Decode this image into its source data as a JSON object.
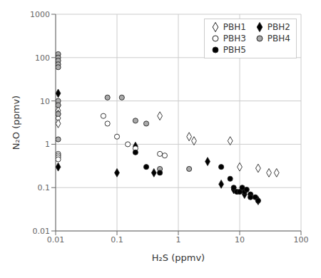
{
  "chart_data": {
    "type": "scatter",
    "xlabel": "H₂S (ppmv)",
    "ylabel": "N₂O (ppmv)",
    "log": true,
    "grid": true,
    "legend": "upper right",
    "xlim": [
      0.01,
      100
    ],
    "ylim": [
      0.01,
      1000
    ],
    "xticks": [
      0.01,
      0.1,
      1,
      10,
      100
    ],
    "yticks": [
      0.01,
      0.1,
      1,
      10,
      100,
      1000
    ],
    "series": [
      {
        "name": "PBH1",
        "marker": "diamond",
        "color": "#ffffff",
        "x": [
          0.011,
          0.011,
          0.011,
          0.011,
          0.011,
          0.5,
          1.5,
          1.8,
          7,
          10,
          20,
          30,
          40
        ],
        "values": [
          8,
          6,
          5,
          4,
          3,
          4.5,
          1.5,
          1.2,
          1.2,
          0.3,
          0.28,
          0.22,
          0.22
        ]
      },
      {
        "name": "PBH2",
        "marker": "diamond",
        "color": "#000000",
        "x": [
          0.011,
          0.011,
          0.1,
          0.2,
          0.4,
          3,
          5,
          8,
          12,
          20
        ],
        "values": [
          15,
          0.3,
          0.22,
          0.9,
          0.22,
          0.4,
          0.12,
          0.09,
          0.07,
          0.05
        ]
      },
      {
        "name": "PBH3",
        "marker": "circle",
        "color": "#ffffff",
        "x": [
          0.011,
          0.011,
          0.011,
          0.011,
          0.06,
          0.07,
          0.1,
          0.15,
          0.2,
          0.5,
          0.6
        ],
        "values": [
          0.6,
          0.55,
          0.5,
          0.45,
          4.5,
          3,
          1.5,
          1.0,
          0.8,
          0.6,
          0.55
        ]
      },
      {
        "name": "PBH4",
        "marker": "circle",
        "color": "#aaaaaa",
        "x": [
          0.011,
          0.011,
          0.011,
          0.011,
          0.011,
          0.011,
          0.011,
          0.011,
          0.011,
          0.07,
          0.12,
          0.2,
          0.3,
          0.5,
          1.5
        ],
        "values": [
          120,
          100,
          85,
          70,
          60,
          10,
          8,
          5,
          1.3,
          12,
          12,
          3.5,
          3,
          0.27,
          0.27
        ]
      },
      {
        "name": "PBH5",
        "marker": "circle",
        "color": "#000000",
        "x": [
          0.2,
          0.3,
          0.5,
          5,
          7,
          8,
          9,
          10,
          11,
          12,
          13,
          15,
          15,
          18,
          20
        ],
        "values": [
          0.65,
          0.3,
          0.22,
          0.3,
          0.16,
          0.1,
          0.08,
          0.08,
          0.1,
          0.08,
          0.09,
          0.07,
          0.06,
          0.06,
          0.05
        ]
      }
    ]
  }
}
